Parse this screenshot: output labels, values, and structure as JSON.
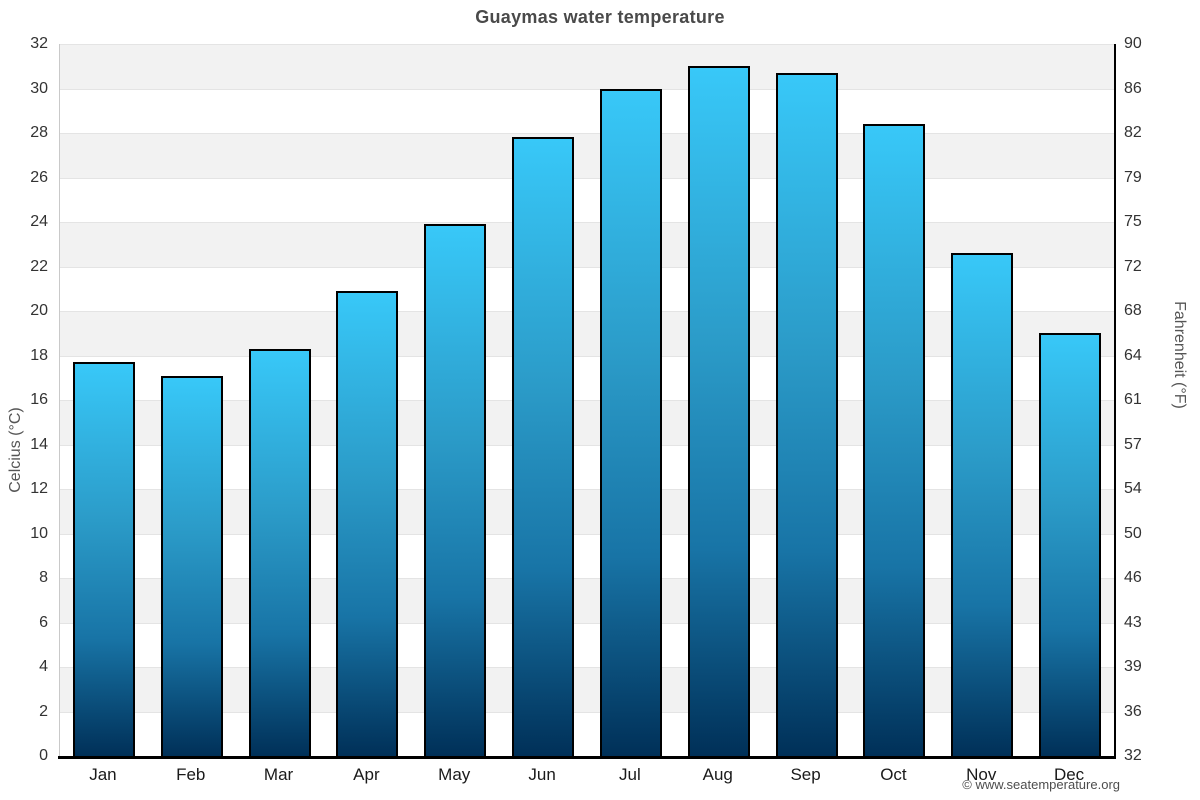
{
  "title": "Guaymas water temperature",
  "credit": "© www.seatemperature.org",
  "chart_data": {
    "type": "bar",
    "title": "Guaymas water temperature",
    "xlabel": "",
    "ylabel_left": "Celcius (°C)",
    "ylabel_right": "Fahrenheit (°F)",
    "unit": "°C",
    "categories": [
      "Jan",
      "Feb",
      "Mar",
      "Apr",
      "May",
      "Jun",
      "Jul",
      "Aug",
      "Sep",
      "Oct",
      "Nov",
      "Dec"
    ],
    "values": [
      17.7,
      17.1,
      18.3,
      20.9,
      23.9,
      27.8,
      30.0,
      31.0,
      30.7,
      28.4,
      22.6,
      19.0
    ],
    "ylim": [
      0,
      32
    ],
    "yticks": [
      {
        "c": 0,
        "f": 32
      },
      {
        "c": 2,
        "f": 36
      },
      {
        "c": 4,
        "f": 39
      },
      {
        "c": 6,
        "f": 43
      },
      {
        "c": 8,
        "f": 46
      },
      {
        "c": 10,
        "f": 50
      },
      {
        "c": 12,
        "f": 54
      },
      {
        "c": 14,
        "f": 57
      },
      {
        "c": 16,
        "f": 61
      },
      {
        "c": 18,
        "f": 64
      },
      {
        "c": 20,
        "f": 68
      },
      {
        "c": 22,
        "f": 72
      },
      {
        "c": 24,
        "f": 75
      },
      {
        "c": 26,
        "f": 79
      },
      {
        "c": 28,
        "f": 82
      },
      {
        "c": 30,
        "f": 86
      },
      {
        "c": 32,
        "f": 90
      }
    ],
    "grid": "alternating horizontal bands every 2°C",
    "legend": "none",
    "colors": {
      "bar_gradient_top": "#38c8f8",
      "bar_gradient_mid1": "#2b9bc8",
      "bar_gradient_mid2": "#1874a6",
      "bar_gradient_bottom": "#003058",
      "bar_border": "#000000",
      "band_gray": "#f2f2f2",
      "band_white": "#ffffff",
      "gridline": "#e4e4e4",
      "title_text": "#4a4a4a",
      "tick_text": "#333333",
      "axis_title_text": "#555555",
      "credit_text": "#4d4d4d"
    }
  }
}
